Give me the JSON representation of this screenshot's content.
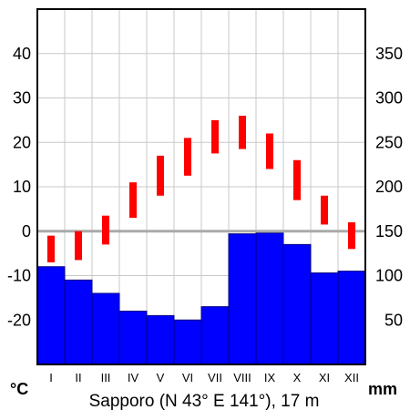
{
  "chart_data": {
    "type": "climate-diagram",
    "caption": "Sapporo (N 43° E 141°), 17 m",
    "temp_unit": "°C",
    "precip_unit": "mm",
    "months": [
      "I",
      "II",
      "III",
      "IV",
      "V",
      "VI",
      "VII",
      "VIII",
      "IX",
      "X",
      "XI",
      "XII"
    ],
    "temperature_ticks": [
      40,
      30,
      20,
      10,
      0,
      -10,
      -20
    ],
    "precip_ticks": [
      350,
      300,
      250,
      200,
      150,
      100,
      50
    ],
    "temp_ylim": [
      -30,
      50
    ],
    "precip_ylim": [
      0,
      400
    ],
    "series": [
      {
        "name": "temperature_range",
        "color": "#ff0000",
        "min": [
          -7,
          -6.5,
          -3,
          3,
          8,
          12.5,
          17.5,
          18.5,
          14,
          7,
          1.5,
          -4
        ],
        "max": [
          -1,
          0,
          3.5,
          11,
          17,
          21,
          25,
          26,
          22,
          16,
          8,
          2
        ]
      },
      {
        "name": "precipitation",
        "color": "#0000ff",
        "values": [
          110,
          95,
          80,
          60,
          55,
          50,
          65,
          147,
          148,
          135,
          103,
          105
        ]
      }
    ],
    "zero_line_color": "#aaaaaa",
    "grid": true
  }
}
